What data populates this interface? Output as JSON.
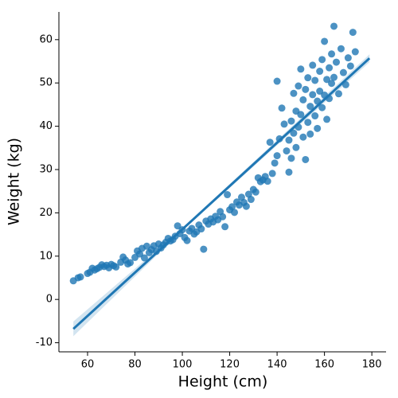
{
  "chart_data": {
    "type": "scatter",
    "xlabel": "Height (cm)",
    "ylabel": "Weight (kg)",
    "color": "#1f77b4",
    "x": [
      54,
      56,
      57,
      60,
      61,
      62,
      63,
      64,
      65,
      66,
      67,
      68,
      69,
      70,
      71,
      72,
      74,
      75,
      76,
      77,
      78,
      80,
      81,
      82,
      83,
      84,
      85,
      86,
      87,
      88,
      89,
      90,
      91,
      92,
      93,
      94,
      95,
      96,
      97,
      98,
      99,
      100,
      101,
      102,
      103,
      104,
      105,
      106,
      107,
      108,
      109,
      110,
      111,
      112,
      113,
      114,
      115,
      116,
      117,
      118,
      119,
      120,
      121,
      122,
      123,
      124,
      125,
      126,
      127,
      128,
      129,
      130,
      131,
      132,
      133,
      134,
      135,
      136,
      137,
      138,
      139,
      140,
      140,
      141,
      142,
      143,
      144,
      145,
      145,
      146,
      146,
      147,
      147,
      148,
      148,
      149,
      149,
      150,
      150,
      151,
      151,
      152,
      152,
      153,
      153,
      154,
      154,
      155,
      155,
      156,
      156,
      157,
      157,
      158,
      158,
      159,
      159,
      160,
      160,
      161,
      161,
      162,
      162,
      163,
      163,
      164,
      164,
      165,
      166,
      167,
      168,
      169,
      170,
      171,
      172,
      173
    ],
    "y": [
      4.3,
      5,
      5.2,
      6,
      6.3,
      7.2,
      6.8,
      7.1,
      7.4,
      8,
      7.6,
      7.9,
      7.3,
      8.1,
      7.8,
      7.5,
      8.6,
      9.8,
      9.1,
      8.2,
      8.5,
      9.7,
      11.2,
      10.5,
      11.8,
      9.6,
      12.3,
      10.8,
      11.5,
      12.4,
      11.1,
      12.8,
      11.9,
      12.6,
      13.2,
      14.1,
      13.5,
      13.8,
      14.6,
      17,
      15.2,
      16.1,
      14.3,
      13.6,
      15.8,
      16.4,
      15.1,
      15.6,
      17.2,
      16.3,
      11.6,
      18.1,
      17.4,
      18.6,
      17.9,
      19.2,
      18.4,
      20.3,
      19.1,
      16.8,
      24.2,
      20.7,
      21.4,
      20.1,
      22.5,
      21.8,
      23.6,
      22.4,
      21.5,
      24.3,
      23.1,
      25.4,
      24.8,
      28.1,
      27.2,
      27.6,
      28.4,
      27.3,
      36.3,
      29.1,
      31.5,
      50.4,
      33.2,
      37.1,
      44.2,
      40.5,
      34.3,
      36.8,
      29.4,
      41.2,
      32.6,
      47.6,
      38.4,
      43.5,
      35.1,
      49.3,
      39.8,
      53.2,
      42.7,
      37.5,
      46.1,
      32.3,
      48.5,
      40.9,
      51.2,
      44.6,
      38.2,
      54.1,
      47.3,
      42.4,
      50.6,
      45.8,
      39.5,
      52.7,
      48.1,
      44.3,
      55.4,
      59.6,
      47.2,
      50.8,
      41.6,
      53.5,
      46.4,
      56.7,
      49.9,
      63.1,
      51.3,
      54.8,
      47.5,
      57.9,
      52.4,
      49.6,
      55.8,
      53.9,
      61.7,
      57.2
    ],
    "fit": {
      "x": [
        54,
        179
      ],
      "y": [
        -6.8,
        55.7
      ]
    },
    "ci": {
      "x": [
        54,
        100,
        179
      ],
      "lower": [
        -8.5,
        15.9,
        54.8
      ],
      "upper": [
        -5.1,
        16.5,
        56.6
      ]
    },
    "xlim": [
      47.9,
      186
    ],
    "xticks": [
      60,
      80,
      100,
      120,
      140,
      160,
      180
    ],
    "ylim": [
      -12.1,
      66.4
    ],
    "yticks": [
      -10,
      0,
      10,
      20,
      30,
      40,
      50,
      60
    ]
  }
}
